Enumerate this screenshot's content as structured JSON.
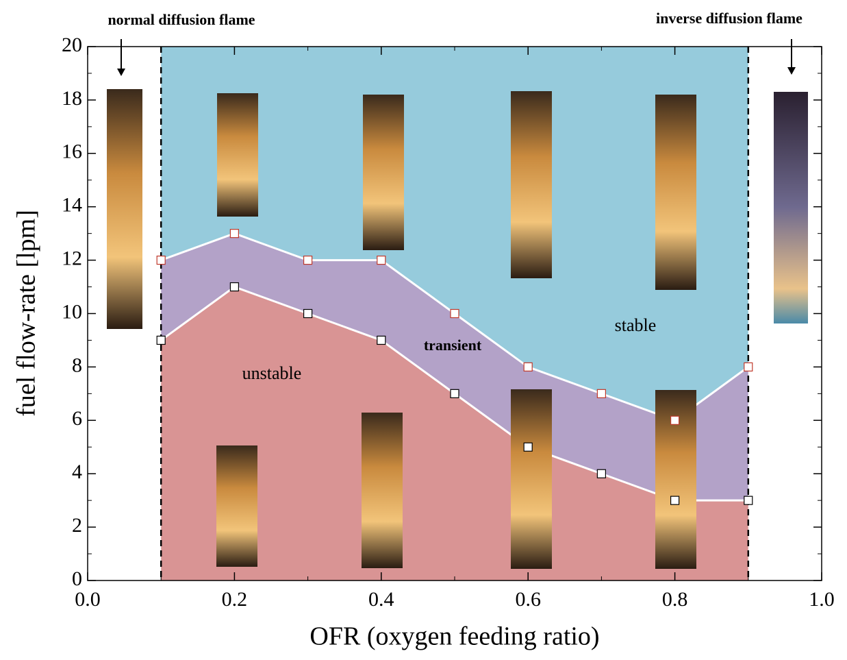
{
  "chart_data": {
    "type": "regime",
    "xlabel": "OFR (oxygen feeding ratio)",
    "ylabel": "fuel flow-rate [lpm]",
    "x": [
      0.1,
      0.2,
      0.3,
      0.4,
      0.5,
      0.6,
      0.7,
      0.8,
      0.9
    ],
    "series": [
      {
        "values": [
          9,
          11,
          10,
          9,
          7,
          5,
          4,
          3,
          3
        ],
        "color": "#000000",
        "fill": "#d99494"
      },
      {
        "values": [
          12,
          13,
          12,
          12,
          10,
          8,
          7,
          6,
          8
        ],
        "color": "#c0392b",
        "fill": "#b3a2c8"
      }
    ],
    "top_fill": "#96cbdc",
    "line_color": "#ffffff",
    "vlines": [
      0.1,
      0.9
    ],
    "xlim": [
      0,
      1
    ],
    "ylim": [
      0,
      20
    ],
    "xticks": [
      {
        "value": 0,
        "label": "0.0"
      },
      0.2,
      0.4,
      0.6,
      0.8,
      {
        "value": 1,
        "label": "1.0"
      }
    ],
    "xminorticks": [
      0.1,
      0.3,
      0.5,
      0.7,
      0.9
    ],
    "yticks": [
      0,
      2,
      4,
      6,
      8,
      10,
      12,
      14,
      16,
      18,
      20
    ],
    "yminorticks": [
      1,
      3,
      5,
      7,
      9,
      11,
      13,
      15,
      17,
      19
    ],
    "region_labels": [
      "unstable",
      "transient",
      "stable"
    ],
    "annotations": [
      "normal diffusion flame",
      "inverse diffusion flame"
    ]
  }
}
